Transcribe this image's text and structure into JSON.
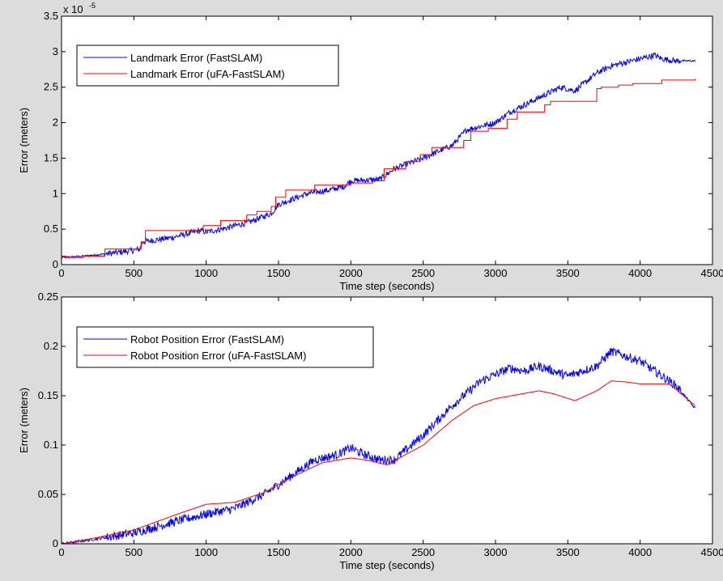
{
  "figure": {
    "background": "#dcdcdc"
  },
  "chart_data": [
    {
      "type": "line",
      "xlabel": "Time step (seconds)",
      "ylabel": "Error (meters)",
      "y_exponent_label": "x 10",
      "y_exponent_power": "-5",
      "xlim": [
        0,
        4500
      ],
      "ylim": [
        0,
        3.5
      ],
      "xticks": [
        "0",
        "500",
        "1000",
        "1500",
        "2000",
        "2500",
        "3000",
        "3500",
        "4000",
        "4500"
      ],
      "yticks": [
        "0",
        "0.5",
        "1",
        "1.5",
        "2",
        "2.5",
        "3",
        "3.5"
      ],
      "grid": false,
      "legend_position": "top-left",
      "series": [
        {
          "name": "Landmark Error (FastSLAM)",
          "color": "#0000ff",
          "style": "noisy-step",
          "x": [
            0,
            150,
            300,
            500,
            540,
            560,
            760,
            960,
            1000,
            1150,
            1300,
            1450,
            1500,
            1700,
            1850,
            1950,
            2000,
            2200,
            2300,
            2500,
            2700,
            2800,
            3000,
            3100,
            3300,
            3450,
            3550,
            3700,
            3800,
            4000,
            4100,
            4150,
            4250,
            4380
          ],
          "y": [
            0.1,
            0.12,
            0.15,
            0.2,
            0.22,
            0.32,
            0.38,
            0.48,
            0.46,
            0.52,
            0.6,
            0.72,
            0.85,
            1.0,
            1.05,
            1.1,
            1.18,
            1.2,
            1.35,
            1.5,
            1.68,
            1.9,
            2.0,
            2.15,
            2.35,
            2.5,
            2.45,
            2.7,
            2.8,
            2.9,
            2.95,
            2.9,
            2.87,
            2.87
          ]
        },
        {
          "name": "Landmark Error (uFA-FastSLAM)",
          "color": "#ff0000",
          "style": "step",
          "x": [
            0,
            30,
            150,
            300,
            550,
            580,
            980,
            1100,
            1280,
            1350,
            1450,
            1480,
            1550,
            1750,
            2000,
            2150,
            2230,
            2380,
            2480,
            2560,
            2780,
            2830,
            2950,
            3080,
            3150,
            3340,
            3380,
            3700,
            3730,
            3850,
            3950,
            4150,
            4380
          ],
          "y": [
            0.12,
            0.1,
            0.12,
            0.22,
            0.32,
            0.48,
            0.55,
            0.62,
            0.7,
            0.75,
            0.82,
            0.95,
            1.05,
            1.12,
            1.15,
            1.18,
            1.35,
            1.45,
            1.55,
            1.65,
            1.75,
            1.88,
            1.92,
            2.05,
            2.15,
            2.25,
            2.3,
            2.48,
            2.5,
            2.53,
            2.55,
            2.6,
            2.62
          ]
        }
      ]
    },
    {
      "type": "line",
      "xlabel": "Time step (seconds)",
      "ylabel": "Error (meters)",
      "xlim": [
        0,
        4500
      ],
      "ylim": [
        0,
        0.25
      ],
      "xticks": [
        "0",
        "500",
        "1000",
        "1500",
        "2000",
        "2500",
        "3000",
        "3500",
        "4000",
        "4500"
      ],
      "yticks": [
        "0",
        "0.05",
        "0.1",
        "0.15",
        "0.2",
        "0.25"
      ],
      "grid": false,
      "legend_position": "top-left",
      "series": [
        {
          "name": "Robot Position Error (FastSLAM)",
          "color": "#0000ff",
          "style": "noisy",
          "x": [
            0,
            200,
            500,
            800,
            1000,
            1200,
            1400,
            1600,
            1750,
            1900,
            2000,
            2100,
            2200,
            2300,
            2500,
            2700,
            2900,
            3100,
            3200,
            3300,
            3500,
            3700,
            3800,
            3900,
            4000,
            4100,
            4250,
            4380
          ],
          "y": [
            0.0,
            0.004,
            0.011,
            0.023,
            0.03,
            0.036,
            0.05,
            0.07,
            0.085,
            0.09,
            0.097,
            0.09,
            0.085,
            0.085,
            0.11,
            0.14,
            0.165,
            0.178,
            0.175,
            0.18,
            0.17,
            0.18,
            0.195,
            0.19,
            0.185,
            0.175,
            0.16,
            0.137
          ]
        },
        {
          "name": "Robot Position Error (uFA-FastSLAM)",
          "color": "#ff0000",
          "style": "smooth",
          "x": [
            0,
            200,
            500,
            800,
            1000,
            1200,
            1400,
            1600,
            1800,
            2000,
            2100,
            2250,
            2500,
            2700,
            2850,
            3000,
            3300,
            3400,
            3550,
            3700,
            3800,
            3900,
            4000,
            4200,
            4380
          ],
          "y": [
            0.0,
            0.005,
            0.014,
            0.03,
            0.04,
            0.042,
            0.052,
            0.068,
            0.082,
            0.087,
            0.085,
            0.08,
            0.1,
            0.125,
            0.14,
            0.147,
            0.155,
            0.152,
            0.145,
            0.155,
            0.165,
            0.164,
            0.162,
            0.162,
            0.14
          ]
        }
      ]
    }
  ]
}
